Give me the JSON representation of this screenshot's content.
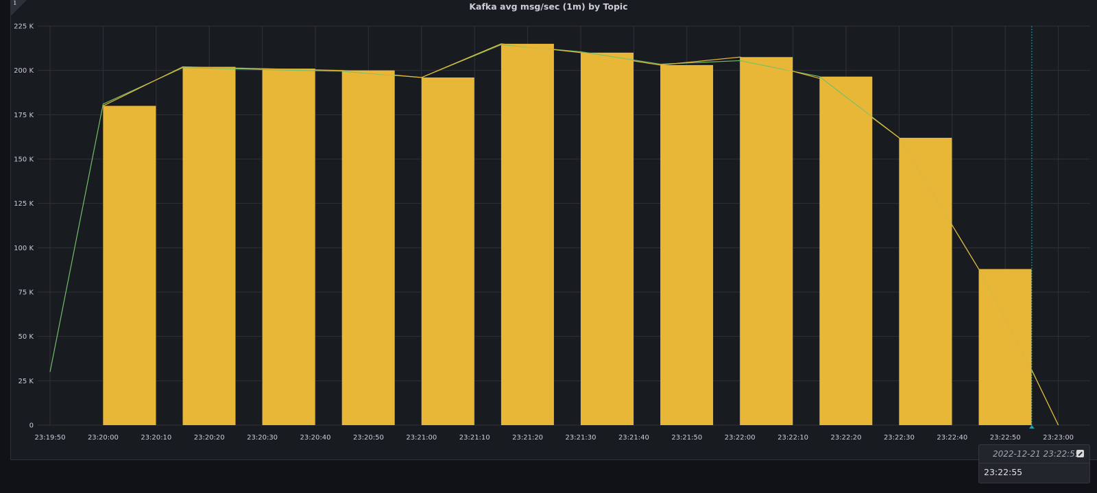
{
  "panel": {
    "title": "Kafka avg msg/sec (1m) by Topic",
    "info_icon": "info-icon"
  },
  "tooltip": {
    "date": "2022-12-21 23:22:55",
    "time": "23:22:55",
    "edit_icon": "edit-icon"
  },
  "colors": {
    "background": "#181b1f",
    "bar": "#e8b738",
    "line_yellow": "#e8b738",
    "line_green": "#73bf69",
    "crosshair": "#1f9fb8",
    "grid": "#2f3238",
    "text": "#ccccdc"
  },
  "chart_data": {
    "type": "bar",
    "title": "Kafka avg msg/sec (1m) by Topic",
    "xlabel": "",
    "ylabel": "",
    "ylim": [
      0,
      225000
    ],
    "y_ticks": [
      "0",
      "25 K",
      "50 K",
      "75 K",
      "100 K",
      "125 K",
      "150 K",
      "175 K",
      "200 K",
      "225 K"
    ],
    "x_ticks": [
      "23:19:50",
      "23:20:00",
      "23:20:10",
      "23:20:20",
      "23:20:30",
      "23:20:40",
      "23:20:50",
      "23:21:00",
      "23:21:10",
      "23:21:20",
      "23:21:30",
      "23:21:40",
      "23:21:50",
      "23:22:00",
      "23:22:10",
      "23:22:20",
      "23:22:30",
      "23:22:40",
      "23:22:50",
      "23:23:00"
    ],
    "grid": true,
    "bars": {
      "categories": [
        "23:20:00",
        "23:20:15",
        "23:20:30",
        "23:20:45",
        "23:21:00",
        "23:21:15",
        "23:21:30",
        "23:21:45",
        "23:22:00",
        "23:22:15",
        "23:22:30",
        "23:22:45"
      ],
      "values": [
        180000,
        202000,
        201000,
        200000,
        196000,
        215000,
        210000,
        203000,
        207500,
        196500,
        162000,
        88000
      ]
    },
    "series": [
      {
        "color": "#73bf69",
        "x": [
          "23:19:50",
          "23:20:00",
          "23:20:15",
          "23:20:30",
          "23:20:45",
          "23:21:00",
          "23:21:15",
          "23:21:30",
          "23:21:45",
          "23:22:00",
          "23:22:15",
          "23:22:30",
          "23:22:45",
          "23:22:55",
          "23:23:00"
        ],
        "values": [
          30000,
          181000,
          201500,
          200500,
          199500,
          196000,
          214500,
          210500,
          203500,
          205500,
          196500,
          162000,
          88000,
          31000,
          0
        ]
      },
      {
        "color": "#e8b738",
        "x": [
          "23:20:00",
          "23:20:15",
          "23:20:30",
          "23:20:45",
          "23:21:00",
          "23:21:15",
          "23:21:30",
          "23:21:45",
          "23:22:00",
          "23:22:15",
          "23:22:30",
          "23:22:45",
          "23:22:55",
          "23:23:00"
        ],
        "values": [
          180000,
          202000,
          201000,
          200000,
          196000,
          215000,
          210000,
          203000,
          207500,
          195500,
          162000,
          88000,
          31000,
          0
        ]
      }
    ],
    "crosshair_x": "23:22:55"
  }
}
